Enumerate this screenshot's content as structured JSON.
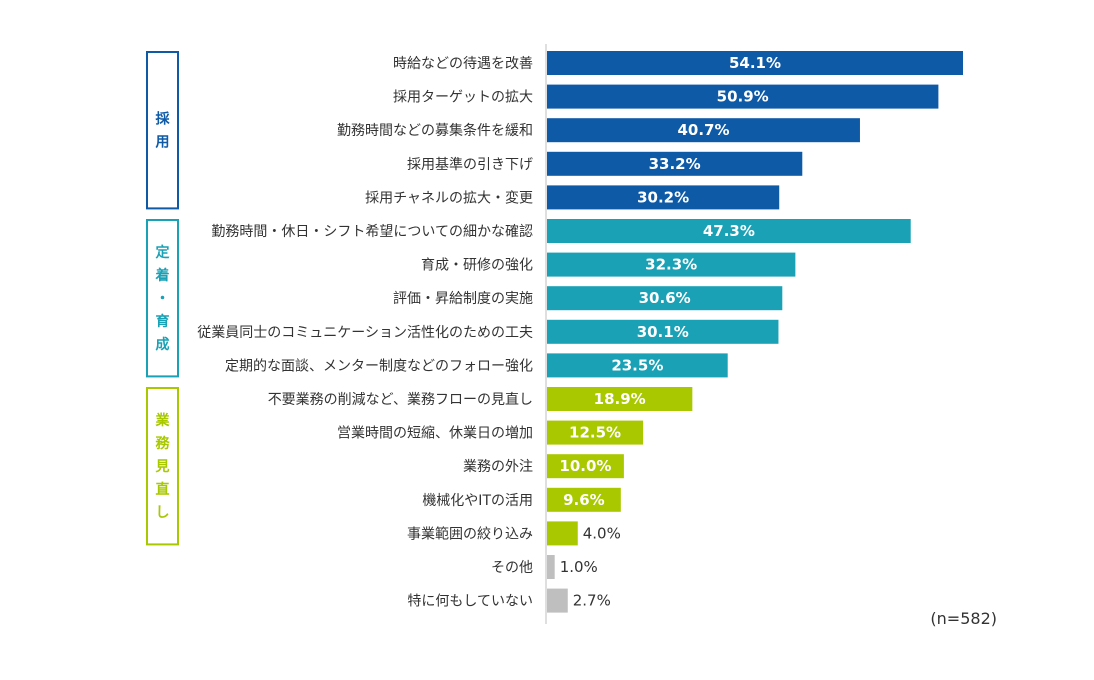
{
  "chart_data": {
    "type": "bar",
    "orientation": "horizontal",
    "unit": "%",
    "note": "(n=582)",
    "groups": [
      {
        "label": "採用",
        "color": "#0e5aa7",
        "start": 0,
        "end": 4
      },
      {
        "label": "定着・育成",
        "color": "#1aa1b5",
        "start": 5,
        "end": 9
      },
      {
        "label": "業務見直し",
        "color": "#a9c800",
        "start": 10,
        "end": 14
      }
    ],
    "categories": [
      "時給などの待遇を改善",
      "採用ターゲットの拡大",
      "勤務時間などの募集条件を緩和",
      "採用基準の引き下げ",
      "採用チャネルの拡大・変更",
      "勤務時間・休日・シフト希望についての細かな確認",
      "育成・研修の強化",
      "評価・昇給制度の実施",
      "従業員同士のコミュニケーション活性化のための工夫",
      "定期的な面談、メンター制度などのフォロー強化",
      "不要業務の削減など、業務フローの見直し",
      "営業時間の短縮、休業日の増加",
      "業務の外注",
      "機械化やITの活用",
      "事業範囲の絞り込み",
      "その他",
      "特に何もしていない"
    ],
    "values": [
      54.1,
      50.9,
      40.7,
      33.2,
      30.2,
      47.3,
      32.3,
      30.6,
      30.1,
      23.5,
      18.9,
      12.5,
      10.0,
      9.6,
      4.0,
      1.0,
      2.7
    ],
    "value_labels": [
      "54.1%",
      "50.9%",
      "40.7%",
      "33.2%",
      "30.2%",
      "47.3%",
      "32.3%",
      "30.6%",
      "30.1%",
      "23.5%",
      "18.9%",
      "12.5%",
      "10.0%",
      "9.6%",
      "4.0%",
      "1.0%",
      "2.7%"
    ],
    "colors": [
      "#0e5aa7",
      "#0e5aa7",
      "#0e5aa7",
      "#0e5aa7",
      "#0e5aa7",
      "#1aa1b5",
      "#1aa1b5",
      "#1aa1b5",
      "#1aa1b5",
      "#1aa1b5",
      "#a9c800",
      "#a9c800",
      "#a9c800",
      "#a9c800",
      "#a9c800",
      "#bfbfbf",
      "#bfbfbf"
    ],
    "label_inside": [
      true,
      true,
      true,
      true,
      true,
      true,
      true,
      true,
      true,
      true,
      true,
      true,
      true,
      true,
      false,
      false,
      false
    ],
    "xlim": [
      0,
      60
    ],
    "grid": false,
    "legend": "none"
  }
}
